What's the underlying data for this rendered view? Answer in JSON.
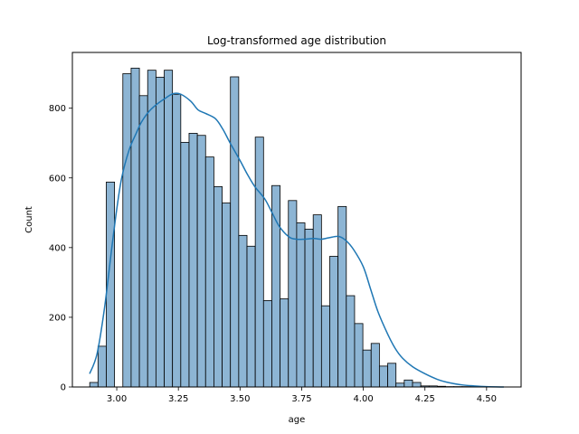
{
  "chart_data": {
    "type": "histogram",
    "title": "Log-transformed age distribution",
    "xlabel": "age",
    "ylabel": "Count",
    "xlim": [
      2.82,
      4.64
    ],
    "ylim": [
      0,
      960
    ],
    "xticks": [
      3.0,
      3.25,
      3.5,
      3.75,
      4.0,
      4.25,
      4.5
    ],
    "xtick_labels": [
      "3.00",
      "3.25",
      "3.50",
      "3.75",
      "4.00",
      "4.25",
      "4.50"
    ],
    "yticks": [
      0,
      200,
      400,
      600,
      800
    ],
    "grid": false,
    "bar_color": "#8db5d4",
    "edge_color": "#000000",
    "kde_color": "#1f77b4",
    "bins": {
      "x0": 2.8904,
      "width": 0.03357,
      "counts": [
        13,
        117,
        588,
        0,
        899,
        915,
        836,
        909,
        889,
        909,
        840,
        702,
        728,
        722,
        660,
        575,
        528,
        890,
        435,
        404,
        717,
        248,
        578,
        253,
        535,
        471,
        453,
        494,
        233,
        375,
        518,
        262,
        182,
        106,
        125,
        60,
        68,
        11,
        20,
        13,
        3,
        3,
        2,
        1,
        1,
        1,
        1,
        1
      ]
    },
    "kde": {
      "x": [
        2.89,
        2.92,
        2.95,
        2.98,
        3.0,
        3.02,
        3.05,
        3.08,
        3.1,
        3.13,
        3.16,
        3.2,
        3.23,
        3.26,
        3.3,
        3.33,
        3.36,
        3.4,
        3.43,
        3.46,
        3.5,
        3.53,
        3.56,
        3.6,
        3.63,
        3.66,
        3.7,
        3.73,
        3.76,
        3.8,
        3.83,
        3.86,
        3.9,
        3.93,
        3.96,
        4.0,
        4.03,
        4.06,
        4.1,
        4.13,
        4.16,
        4.2,
        4.25,
        4.3,
        4.35,
        4.4,
        4.45,
        4.5,
        4.57
      ],
      "y": [
        38,
        95,
        225,
        400,
        510,
        600,
        680,
        730,
        760,
        790,
        810,
        830,
        842,
        840,
        820,
        795,
        785,
        770,
        740,
        700,
        650,
        610,
        575,
        540,
        500,
        460,
        430,
        424,
        424,
        426,
        424,
        428,
        432,
        420,
        395,
        345,
        280,
        215,
        150,
        110,
        82,
        58,
        38,
        22,
        12,
        6,
        3,
        1,
        0
      ]
    }
  }
}
